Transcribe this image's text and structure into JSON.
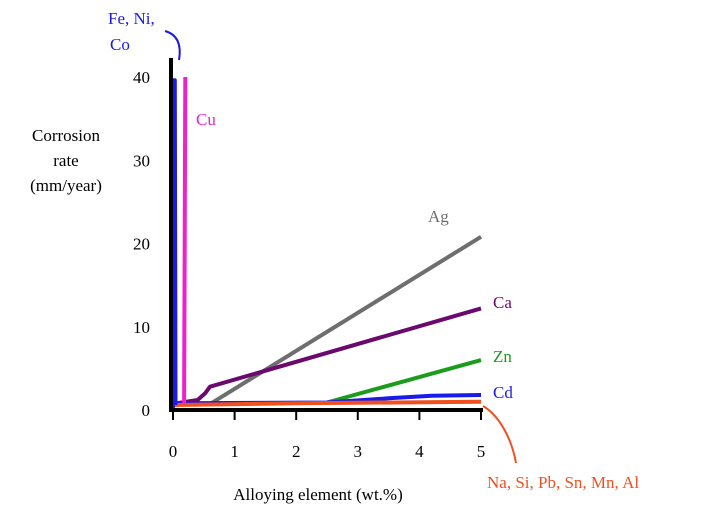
{
  "chart_data": {
    "type": "line",
    "title": "",
    "xlabel": "Alloying element (wt.%)",
    "ylabel": [
      "Corrosion",
      "rate",
      "(mm/year)"
    ],
    "xlim": [
      0,
      5
    ],
    "ylim": [
      0,
      40
    ],
    "xticks": [
      0,
      1,
      2,
      3,
      4,
      5
    ],
    "yticks": [
      0,
      10,
      20,
      30,
      40
    ],
    "grid": false,
    "series": [
      {
        "name": "Ag",
        "color": "#6e6e6e",
        "x": [
          0.62,
          5.0
        ],
        "y": [
          0.8,
          20.8
        ]
      },
      {
        "name": "Ca",
        "color": "#6a0a6e",
        "x": [
          0.05,
          0.4,
          0.52,
          0.6,
          5.0
        ],
        "y": [
          0.8,
          1.2,
          2.0,
          2.8,
          12.2
        ]
      },
      {
        "name": "Zn",
        "color": "#1c9c1c",
        "x": [
          2.5,
          5.0
        ],
        "y": [
          0.9,
          6.0
        ]
      },
      {
        "name": "Cd",
        "color": "#1a1aeb",
        "x": [
          0.05,
          2.5,
          3.5,
          4.2,
          5.0
        ],
        "y": [
          0.8,
          0.9,
          1.4,
          1.7,
          1.8
        ]
      },
      {
        "name": "Na, Si, Pb, Sn, Mn, Al",
        "color": "#f0501e",
        "x": [
          0.0,
          2.0,
          5.0
        ],
        "y": [
          0.6,
          0.8,
          1.0
        ]
      },
      {
        "name": "Fe, Ni, Co",
        "color": "#1a1aeb",
        "x": [
          0.0,
          0.0,
          0.01,
          0.03,
          0.04
        ],
        "y": [
          0.2,
          35.0,
          39.6,
          39.6,
          0.6
        ]
      },
      {
        "name": "Cu",
        "color": "#ee22cc",
        "x": [
          0.18,
          0.2
        ],
        "y": [
          0.7,
          40.0
        ]
      }
    ]
  }
}
